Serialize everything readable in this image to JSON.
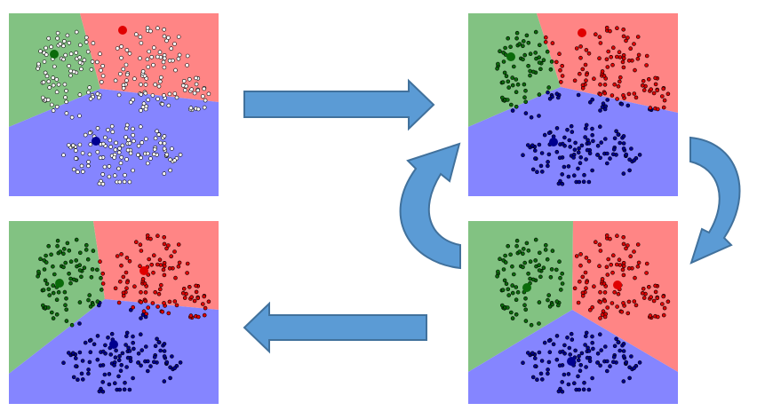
{
  "colors": {
    "green_region": "#82c282",
    "red_region": "#ff8585",
    "blue_region": "#8585ff",
    "green_dot": "#0b6b0b",
    "red_dot": "#e00000",
    "blue_dot": "#00008f",
    "unassigned_dot": "#ffffff",
    "arrow_fill": "#5b9bd5",
    "arrow_stroke": "#41719c"
  },
  "panels": [
    {
      "id": "panel-tl",
      "name": "initial-state-panel",
      "regions": {
        "green": [
          [
            0,
            0
          ],
          [
            80,
            0
          ],
          [
            103,
            85
          ],
          [
            0,
            128
          ]
        ],
        "red": [
          [
            80,
            0
          ],
          [
            236,
            0
          ],
          [
            236,
            100
          ],
          [
            103,
            85
          ]
        ],
        "blue": [
          [
            0,
            128
          ],
          [
            103,
            85
          ],
          [
            236,
            100
          ],
          [
            236,
            206
          ],
          [
            0,
            206
          ]
        ]
      },
      "centroids": {
        "green": [
          51,
          46
        ],
        "red": [
          128,
          19
        ],
        "blue": [
          98,
          144
        ]
      },
      "assigned": false
    },
    {
      "id": "panel-tr",
      "name": "assignment-step-panel",
      "regions": {
        "green": [
          [
            0,
            0
          ],
          [
            77,
            0
          ],
          [
            104,
            83
          ],
          [
            0,
            128
          ]
        ],
        "red": [
          [
            77,
            0
          ],
          [
            236,
            0
          ],
          [
            236,
            112
          ],
          [
            104,
            83
          ]
        ],
        "blue": [
          [
            0,
            128
          ],
          [
            104,
            83
          ],
          [
            236,
            112
          ],
          [
            236,
            206
          ],
          [
            0,
            206
          ]
        ]
      },
      "centroids": {
        "green": [
          48,
          49
        ],
        "red": [
          128,
          22
        ],
        "blue": [
          96,
          145
        ]
      },
      "assigned": true
    },
    {
      "id": "panel-br",
      "name": "update-step-panel",
      "regions": {
        "green": [
          [
            0,
            0
          ],
          [
            118,
            0
          ],
          [
            117,
            100
          ],
          [
            0,
            170
          ]
        ],
        "red": [
          [
            118,
            0
          ],
          [
            236,
            0
          ],
          [
            236,
            170
          ],
          [
            117,
            100
          ]
        ],
        "blue": [
          [
            0,
            170
          ],
          [
            117,
            100
          ],
          [
            236,
            170
          ],
          [
            236,
            206
          ],
          [
            0,
            206
          ]
        ]
      },
      "centroids": {
        "green": [
          66,
          75
        ],
        "red": [
          168,
          72
        ],
        "blue": [
          116,
          158
        ]
      },
      "assigned": true
    },
    {
      "id": "panel-bl",
      "name": "final-state-panel",
      "regions": {
        "green": [
          [
            0,
            0
          ],
          [
            95,
            0
          ],
          [
            108,
            88
          ],
          [
            0,
            172
          ]
        ],
        "red": [
          [
            95,
            0
          ],
          [
            236,
            0
          ],
          [
            236,
            100
          ],
          [
            108,
            88
          ]
        ],
        "blue": [
          [
            0,
            172
          ],
          [
            108,
            88
          ],
          [
            236,
            100
          ],
          [
            236,
            206
          ],
          [
            0,
            206
          ]
        ]
      },
      "centroids": {
        "green": [
          57,
          70
        ],
        "red": [
          152,
          56
        ],
        "blue": [
          118,
          139
        ]
      },
      "assigned": true
    }
  ],
  "arrows": [
    {
      "name": "arrow-right-top",
      "direction": "right"
    },
    {
      "name": "arrow-left-bottom",
      "direction": "left"
    },
    {
      "name": "curved-arrow-down-right",
      "direction": "clockwise-down"
    },
    {
      "name": "curved-arrow-up-middle",
      "direction": "counterclockwise-up"
    }
  ]
}
